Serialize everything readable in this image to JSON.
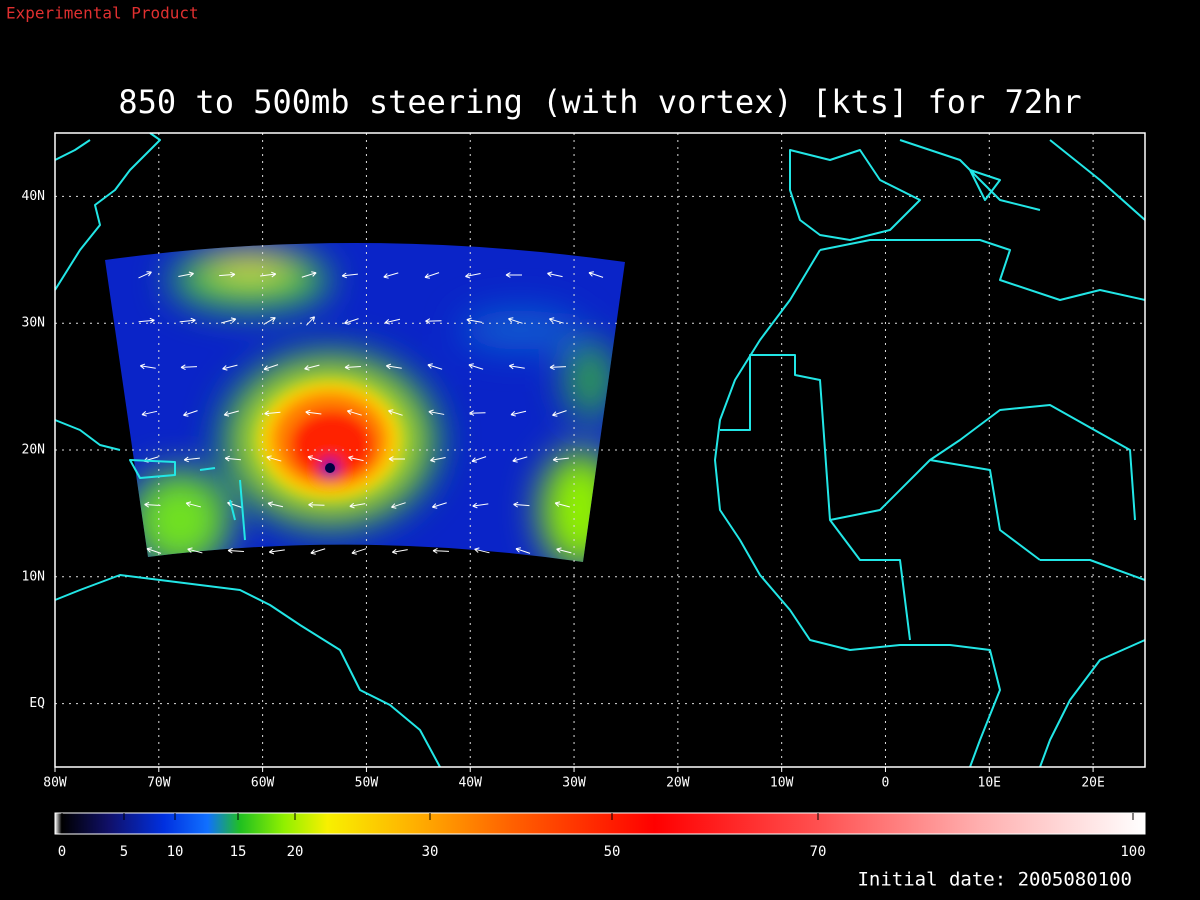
{
  "header": {
    "label": "Experimental Product"
  },
  "map": {
    "title": "850 to 500mb steering (with vortex) [kts] for 72hr",
    "xlim": [
      -80,
      25
    ],
    "ylim": [
      -5,
      45
    ],
    "xticks": [
      {
        "value": -80,
        "label": "80W"
      },
      {
        "value": -70,
        "label": "70W"
      },
      {
        "value": -60,
        "label": "60W"
      },
      {
        "value": -50,
        "label": "50W"
      },
      {
        "value": -40,
        "label": "40W"
      },
      {
        "value": -30,
        "label": "30W"
      },
      {
        "value": -20,
        "label": "20W"
      },
      {
        "value": -10,
        "label": "10W"
      },
      0,
      {
        "value": 10,
        "label": "10E"
      },
      {
        "value": 20,
        "label": "20E"
      }
    ],
    "yticks": [
      {
        "value": 0,
        "label": "EQ"
      },
      {
        "value": 10,
        "label": "10N"
      },
      {
        "value": 20,
        "label": "20N"
      },
      {
        "value": 30,
        "label": "30N"
      },
      {
        "value": 40,
        "label": "40N"
      }
    ],
    "grid": true,
    "colorbar": {
      "ticks": [
        0,
        5,
        10,
        15,
        20,
        30,
        50,
        70,
        100
      ]
    },
    "footer": "Initial date: 2005080100"
  }
}
